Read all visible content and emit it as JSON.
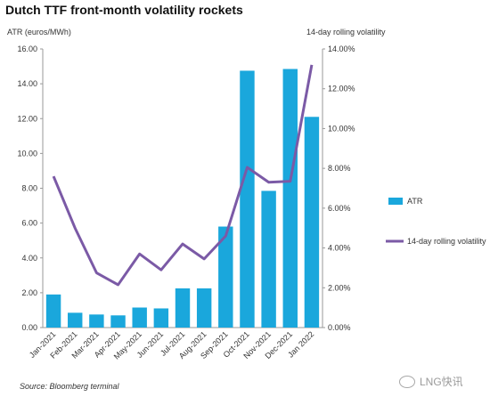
{
  "chart_data": {
    "type": "bar",
    "title": "Dutch TTF front-month volatility rockets",
    "categories": [
      "Jan-2021",
      "Feb-2021",
      "Mar-2021",
      "Apr-2021",
      "May-2021",
      "Jun-2021",
      "Jul-2021",
      "Aug-2021",
      "Sep-2021",
      "Oct-2021",
      "Nov-2021",
      "Dec-2021",
      "Jan 2022"
    ],
    "series": [
      {
        "name": "ATR",
        "kind": "bar",
        "axis": "left",
        "color": "#1aa7dc",
        "values": [
          1.9,
          0.85,
          0.75,
          0.7,
          1.15,
          1.1,
          2.25,
          2.25,
          5.8,
          14.75,
          7.85,
          14.85,
          12.1
        ]
      },
      {
        "name": "14-day rolling volatility",
        "kind": "line",
        "axis": "right",
        "color": "#7b5aa6",
        "values": [
          7.6,
          5.0,
          2.75,
          2.15,
          3.7,
          2.9,
          4.2,
          3.45,
          4.6,
          8.05,
          7.3,
          7.35,
          13.2
        ]
      }
    ],
    "ylabel": "ATR (euros/MWh)",
    "y2label": "14-day rolling volatility",
    "ylim": [
      0,
      16
    ],
    "y2lim": [
      0,
      14
    ],
    "yticks": [
      "0.00",
      "2.00",
      "4.00",
      "6.00",
      "8.00",
      "10.00",
      "12.00",
      "14.00",
      "16.00"
    ],
    "y2ticks": [
      "0.00%",
      "2.00%",
      "4.00%",
      "6.00%",
      "8.00%",
      "10.00%",
      "12.00%",
      "14.00%"
    ],
    "grid": false,
    "legend_position": "right"
  },
  "source": "Source: Bloomberg terminal",
  "watermark": "LNG快讯"
}
